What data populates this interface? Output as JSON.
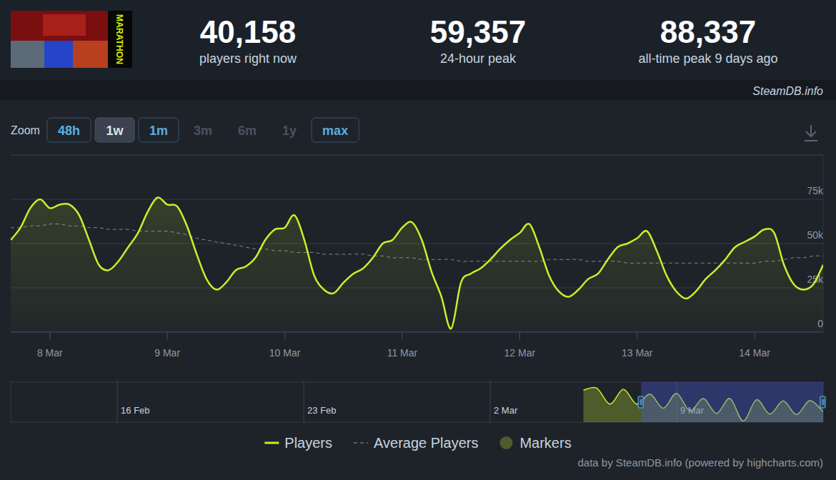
{
  "header": {
    "logo_text": "MARATHON",
    "stats": [
      {
        "value": "40,158",
        "label": "players right now"
      },
      {
        "value": "59,357",
        "label": "24-hour peak"
      },
      {
        "value": "88,337",
        "label": "all-time peak 9 days ago"
      }
    ],
    "watermark": "SteamDB.info"
  },
  "zoom": {
    "label": "Zoom",
    "buttons": [
      "48h",
      "1w",
      "1m",
      "3m",
      "6m",
      "1y",
      "max"
    ],
    "selected": "1w",
    "disabled": [
      "3m",
      "6m",
      "1y"
    ]
  },
  "chart_data": [
    {
      "type": "line",
      "categories": [
        null,
        null,
        null,
        null,
        "8 Mar",
        null,
        null,
        null,
        null,
        null,
        null,
        null,
        null,
        null,
        null,
        null,
        "9 Mar",
        null,
        null,
        null,
        null,
        null,
        null,
        null,
        null,
        null,
        null,
        null,
        "10 Mar",
        null,
        null,
        null,
        null,
        null,
        null,
        null,
        null,
        null,
        null,
        null,
        "11 Mar",
        null,
        null,
        null,
        null,
        null,
        null,
        null,
        null,
        null,
        null,
        null,
        "12 Mar",
        null,
        null,
        null,
        null,
        null,
        null,
        null,
        null,
        null,
        null,
        null,
        "13 Mar",
        null,
        null,
        null,
        null,
        null,
        null,
        null,
        null,
        null,
        null,
        null,
        "14 Mar",
        null,
        null,
        null,
        null,
        null,
        null,
        null
      ],
      "series": [
        {
          "name": "Players",
          "color": "#c8f02a",
          "values": [
            52000,
            59000,
            70000,
            75000,
            70000,
            72000,
            72000,
            66000,
            52000,
            38000,
            35000,
            40000,
            48000,
            56000,
            68000,
            76000,
            72000,
            71000,
            60000,
            44000,
            30000,
            24000,
            28000,
            35000,
            37000,
            42000,
            52000,
            58000,
            59000,
            66000,
            52000,
            32000,
            24000,
            22000,
            28000,
            33000,
            36000,
            42000,
            50000,
            52000,
            59000,
            62000,
            52000,
            34000,
            20000,
            2000,
            28000,
            33000,
            36000,
            41000,
            47000,
            52000,
            56000,
            61000,
            48000,
            32000,
            23000,
            20000,
            24000,
            30000,
            33000,
            41000,
            48000,
            50000,
            53000,
            57000,
            46000,
            32000,
            23000,
            19000,
            23000,
            30000,
            35000,
            41000,
            48000,
            51000,
            54000,
            58000,
            56000,
            38000,
            27000,
            24000,
            27000,
            38000
          ]
        },
        {
          "name": "Average Players",
          "color": "#8f98a0",
          "line_style": "dashed",
          "values": [
            59000,
            59000,
            60000,
            60000,
            61000,
            61000,
            60000,
            60000,
            59000,
            59000,
            58000,
            58000,
            58000,
            57000,
            57000,
            57000,
            57000,
            56000,
            55000,
            53000,
            52000,
            51000,
            50000,
            49000,
            48000,
            47000,
            47000,
            46000,
            46000,
            45000,
            45000,
            45000,
            44000,
            44000,
            44000,
            44000,
            44000,
            43000,
            43000,
            42000,
            42000,
            42000,
            41000,
            41000,
            41000,
            41000,
            40000,
            40000,
            40000,
            40000,
            40000,
            40000,
            40000,
            40000,
            40000,
            41000,
            41000,
            41000,
            41000,
            40000,
            40000,
            40000,
            40000,
            39000,
            39000,
            39000,
            39000,
            39000,
            39000,
            39000,
            39000,
            39000,
            39000,
            39000,
            39000,
            39000,
            39000,
            40000,
            40000,
            41000,
            42000,
            42000,
            43000,
            43000
          ]
        },
        {
          "name": "Markers",
          "color": "#4f5b2e",
          "type": "scatter",
          "marker": "circle",
          "values": [
            null,
            null,
            null,
            null,
            null,
            null,
            null,
            null,
            null,
            null,
            null,
            null,
            null,
            null,
            null,
            null,
            null,
            null,
            null,
            null,
            null,
            null,
            null,
            null,
            null,
            null,
            null,
            null,
            null,
            null,
            null,
            null,
            null,
            null,
            null,
            null,
            null,
            null,
            null,
            null,
            null,
            null,
            null,
            null,
            null,
            null,
            null,
            null,
            null,
            null,
            null,
            null,
            null,
            null,
            null,
            null,
            null,
            null,
            null,
            null,
            null,
            null,
            null,
            null,
            null,
            null,
            null,
            null,
            null,
            null,
            null,
            null,
            null,
            null,
            null,
            null,
            null,
            null,
            null,
            null,
            null,
            null,
            null,
            null
          ]
        }
      ],
      "ylim": [
        0,
        100000
      ],
      "yticks": [
        0,
        {
          "value": 25000,
          "label": "25k"
        },
        {
          "value": 50000,
          "label": "50k"
        },
        {
          "value": 75000,
          "label": "75k"
        }
      ],
      "grid": true,
      "legend": "bottom"
    },
    {
      "type": "area",
      "categories": [
        null,
        null,
        null,
        null,
        null,
        null,
        null,
        null,
        "16 Feb",
        null,
        null,
        null,
        null,
        null,
        null,
        null,
        null,
        null,
        null,
        null,
        null,
        null,
        "23 Feb",
        null,
        null,
        null,
        null,
        null,
        null,
        null,
        null,
        null,
        null,
        null,
        null,
        null,
        "2 Mar",
        null,
        null,
        null,
        null,
        null,
        null,
        null,
        null,
        null,
        null,
        null,
        null,
        null,
        "9 Mar",
        null,
        null,
        null,
        null,
        null,
        null,
        null,
        null,
        null,
        null,
        null
      ],
      "values": [
        null,
        null,
        null,
        null,
        null,
        null,
        null,
        null,
        null,
        null,
        null,
        null,
        null,
        null,
        null,
        null,
        null,
        null,
        null,
        null,
        null,
        null,
        null,
        null,
        null,
        null,
        null,
        null,
        null,
        null,
        null,
        null,
        null,
        null,
        null,
        null,
        null,
        null,
        null,
        null,
        null,
        null,
        null,
        80000,
        85000,
        45000,
        82000,
        45000,
        70000,
        35000,
        72000,
        28000,
        59000,
        22000,
        59000,
        3000,
        56000,
        20000,
        53000,
        19000,
        54000,
        26000
      ],
      "color": "#c8f02a",
      "ylim": [
        0,
        100000
      ],
      "grid": true,
      "tick_labels": "x"
    }
  ],
  "credits": "data by SteamDB.info (powered by highcharts.com)"
}
